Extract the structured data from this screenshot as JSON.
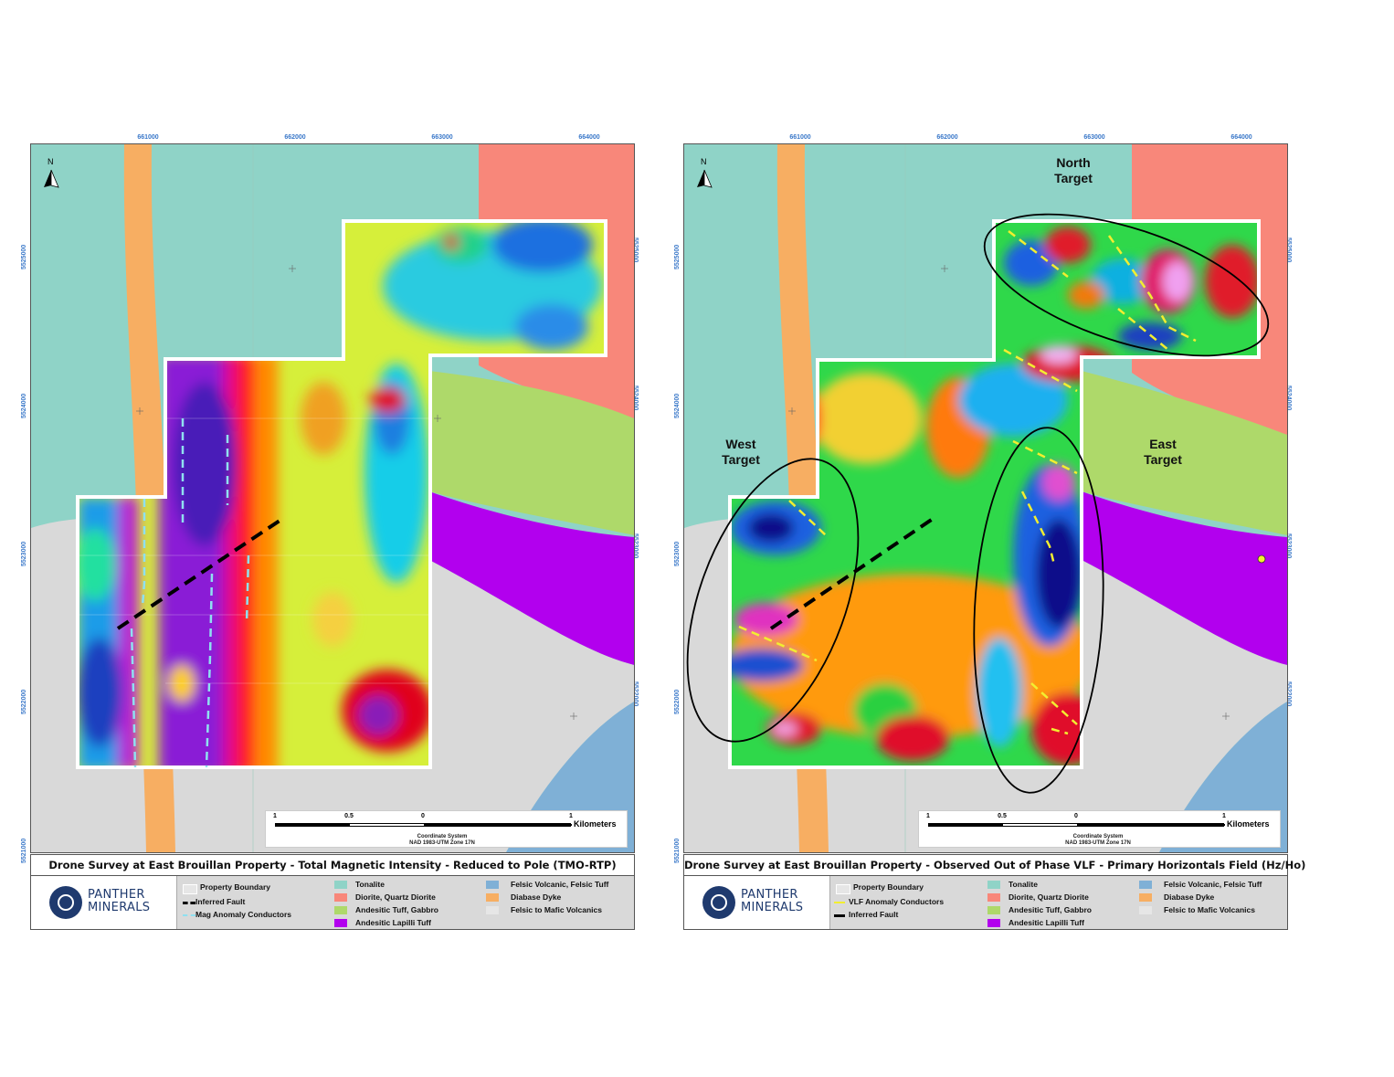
{
  "grid": {
    "eastings": [
      "661000",
      "662000",
      "663000",
      "664000"
    ],
    "northings": [
      "5525000",
      "5524000",
      "5523000",
      "5522000",
      "5521000"
    ]
  },
  "colors": {
    "tonalite": "#8fd3c7",
    "diorite": "#f8877a",
    "andesitic_tuff": "#aed96a",
    "lapilli": "#b200ee",
    "felsic_volcanic": "#7fb0d6",
    "diabase": "#f7ae62",
    "felsic_mafic": "#d9d9d9"
  },
  "north_label": "N",
  "scale": {
    "labels": [
      "1",
      "0.5",
      "0",
      "1"
    ],
    "unit": "Kilometers"
  },
  "coordinate_system": {
    "line1": "Coordinate System",
    "line2": "NAD 1983-UTM Zone 17N"
  },
  "brand": {
    "line1": "PANTHER",
    "line2": "MINERALS"
  },
  "geology_legend": [
    "Tonalite",
    "Diorite, Quartz Diorite",
    "Andesitic Tuff, Gabbro",
    "Andesitic Lapilli Tuff",
    "Felsic Volcanic, Felsic Tuff",
    "Diabase Dyke",
    "Felsic to Mafic Volcanics"
  ],
  "left": {
    "title": "Drone Survey at East Brouillan Property - Total Magnetic Intensity - Reduced to Pole (TMO-RTP)",
    "legend": [
      "Property Boundary",
      "Inferred Fault",
      "Mag Anomaly Conductors"
    ]
  },
  "right": {
    "title": "Drone Survey at East Brouillan Property - Observed Out of Phase VLF - Primary Horizontals Field (Hz/Ho)",
    "legend": [
      "Property Boundary",
      "VLF Anomaly Conductors",
      "Inferred Fault"
    ],
    "targets": {
      "north": [
        "North",
        "Target"
      ],
      "west": [
        "West",
        "Target"
      ],
      "east": [
        "East",
        "Target"
      ]
    }
  }
}
